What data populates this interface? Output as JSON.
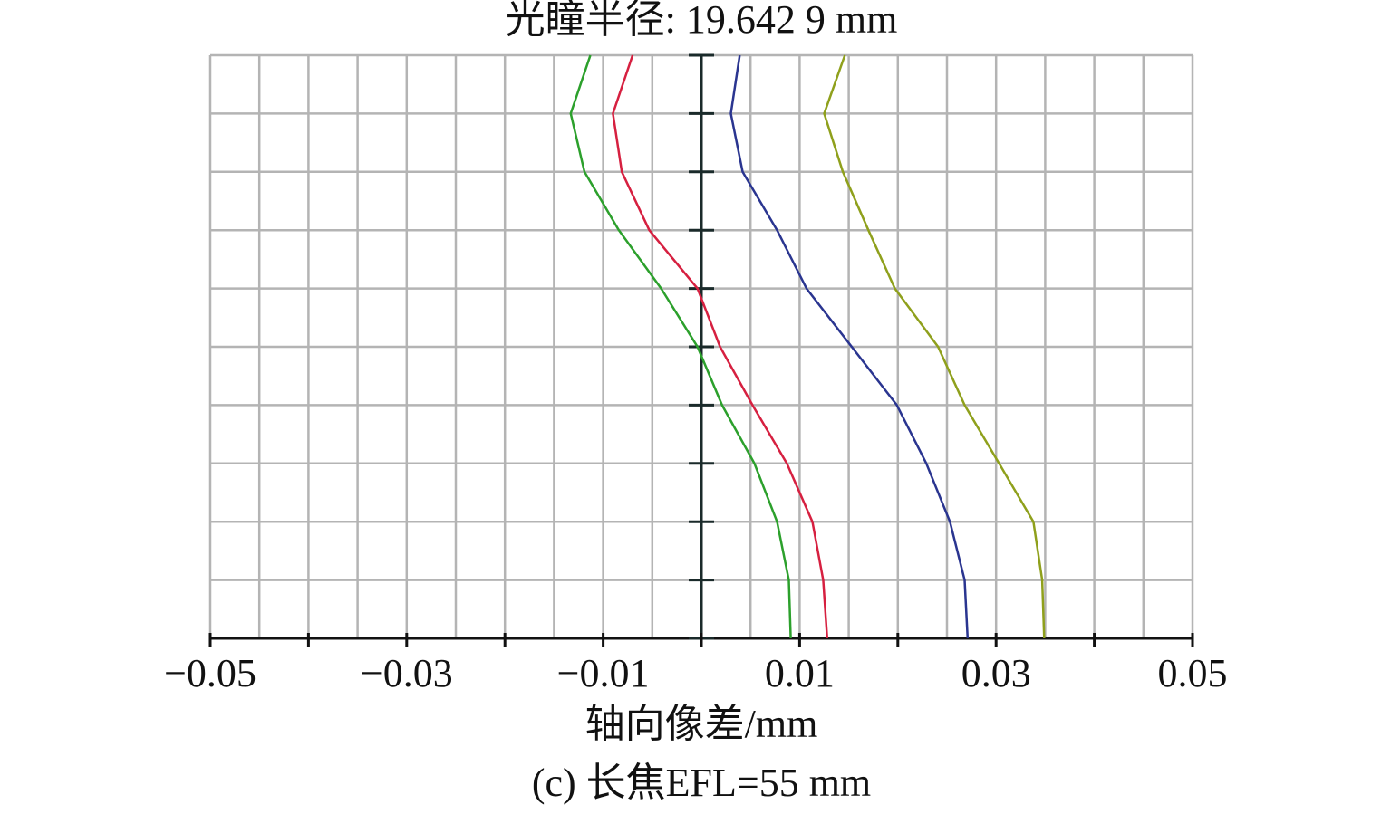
{
  "chart_data": {
    "type": "line",
    "title": "光瞳半径: 19.642 9 mm",
    "xlabel": "轴向像差/mm",
    "caption": "(c) 长焦EFL=55 mm",
    "y": [
      0,
      0.1,
      0.2,
      0.3,
      0.4,
      0.5,
      0.6,
      0.7,
      0.8,
      0.9,
      1
    ],
    "series": [
      {
        "color": "#2ca02c",
        "values": [
          0.0091,
          0.0089,
          0.0077,
          0.0054,
          0.0021,
          -0.0004,
          -0.0041,
          -0.0084,
          -0.0119,
          -0.0133,
          -0.0113
        ]
      },
      {
        "color": "#d62040",
        "values": [
          0.0128,
          0.0124,
          0.0113,
          0.0087,
          0.0052,
          0.0019,
          -0.0004,
          -0.0053,
          -0.0081,
          -0.009,
          -0.007
        ]
      },
      {
        "color": "#2a3590",
        "values": [
          0.0271,
          0.0268,
          0.0253,
          0.0229,
          0.0199,
          0.0153,
          0.0107,
          0.0077,
          0.0042,
          0.003,
          0.0039
        ]
      },
      {
        "color": "#8fa01c",
        "values": [
          0.0349,
          0.0347,
          0.0338,
          0.0303,
          0.0268,
          0.0241,
          0.0197,
          0.017,
          0.0144,
          0.0125,
          0.0146
        ]
      }
    ],
    "xlim": [
      -0.05,
      0.05
    ],
    "ylim": [
      0,
      1
    ],
    "xticks": [
      {
        "value": -0.05,
        "label": "−0.05"
      },
      {
        "value": -0.03,
        "label": "−0.03"
      },
      {
        "value": -0.01,
        "label": "−0.01"
      },
      0.01,
      0.03,
      0.05
    ],
    "xminor": [
      -0.04,
      -0.02,
      0,
      0.02,
      0.04
    ],
    "xgrid": [
      -0.05,
      -0.045,
      -0.04,
      -0.035,
      -0.03,
      -0.025,
      -0.02,
      -0.015,
      -0.01,
      -0.005,
      0,
      0.005,
      0.01,
      0.015,
      0.02,
      0.025,
      0.03,
      0.035,
      0.04,
      0.045,
      0.05
    ],
    "yticks": [
      0,
      0.1,
      0.2,
      0.3,
      0.4,
      0.5,
      0.6,
      0.7,
      0.8,
      0.9,
      1
    ],
    "grid": true
  }
}
